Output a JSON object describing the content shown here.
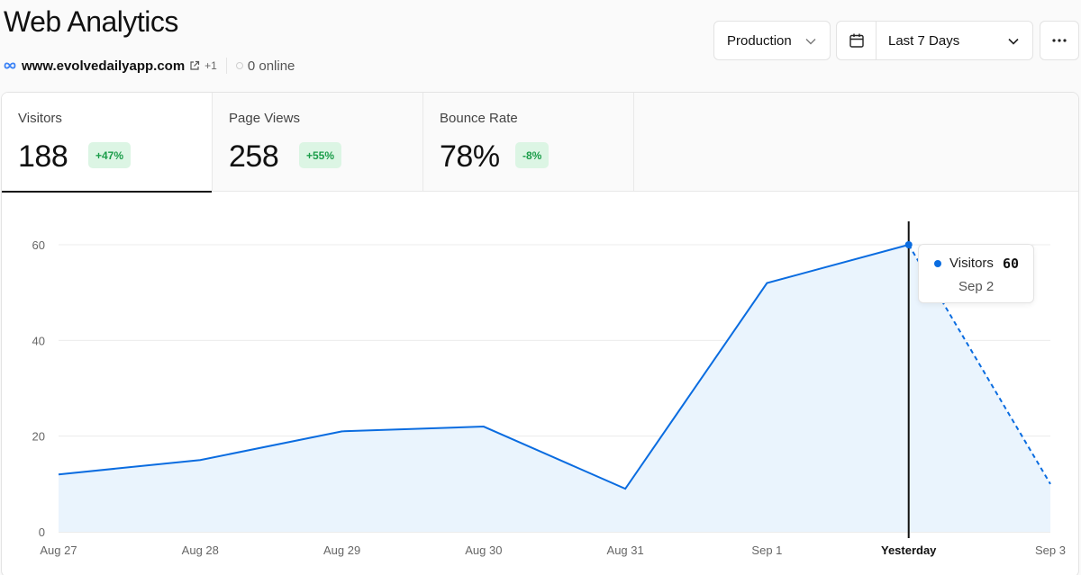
{
  "header": {
    "title": "Web Analytics",
    "site_url": "www.evolvedailyapp.com",
    "extra_sites": "+1",
    "online": "0 online"
  },
  "controls": {
    "environment": "Production",
    "date_range": "Last 7 Days"
  },
  "metrics": [
    {
      "label": "Visitors",
      "value": "188",
      "change": "+47%"
    },
    {
      "label": "Page Views",
      "value": "258",
      "change": "+55%"
    },
    {
      "label": "Bounce Rate",
      "value": "78%",
      "change": "-8%"
    }
  ],
  "colors": {
    "line": "#0a6ce0",
    "area": "#eaf4fd",
    "badge_bg": "#dcf5e4",
    "badge_text": "#1c9d4a"
  },
  "tooltip": {
    "series": "Visitors",
    "value": "60",
    "date": "Sep 2"
  },
  "chart_data": {
    "type": "area",
    "categories": [
      "Aug 27",
      "Aug 28",
      "Aug 29",
      "Aug 30",
      "Aug 31",
      "Sep 1",
      "Yesterday",
      "Sep 3"
    ],
    "series": [
      {
        "name": "Visitors",
        "values": [
          12,
          15,
          21,
          22,
          9,
          52,
          60,
          10
        ]
      }
    ],
    "yticks": [
      0,
      20,
      40,
      60
    ],
    "ylim": [
      0,
      60
    ],
    "highlight_index": 6,
    "projected_from_index": 6
  }
}
